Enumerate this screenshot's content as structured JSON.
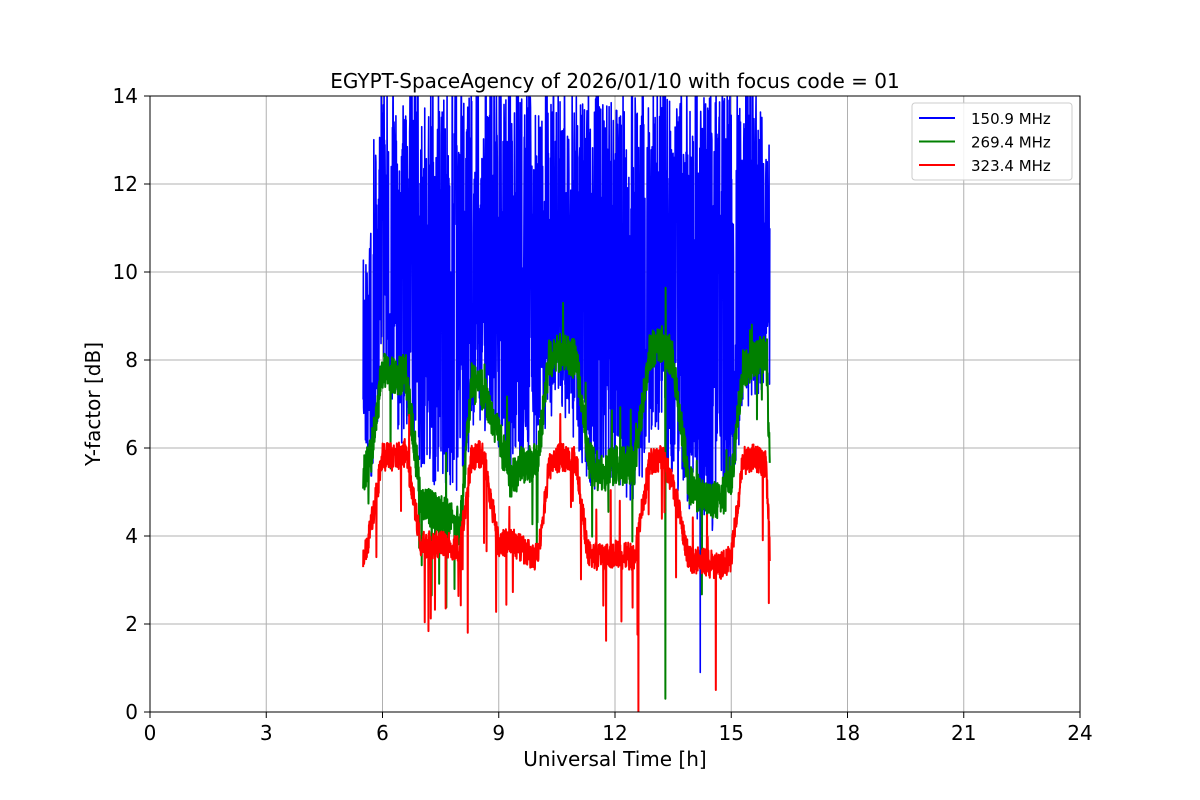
{
  "chart_data": {
    "type": "line",
    "title": "EGYPT-SpaceAgency of 2026/01/10 with focus code = 01",
    "xlabel": "Universal Time [h]",
    "ylabel": "Y-factor [dB]",
    "xlim": [
      0,
      24
    ],
    "ylim": [
      0,
      14
    ],
    "xticks": [
      0,
      3,
      6,
      9,
      12,
      15,
      18,
      21,
      24
    ],
    "yticks": [
      0,
      2,
      4,
      6,
      8,
      10,
      12,
      14
    ],
    "grid": true,
    "legend_position": "top-right",
    "series": [
      {
        "name": "150.9 MHz",
        "color": "#0000ff",
        "approx_profile_x": [
          5.5,
          5.7,
          6.0,
          6.5,
          7.0,
          7.5,
          8.0,
          8.5,
          9.0,
          9.5,
          10.0,
          10.5,
          11.0,
          11.5,
          12.0,
          12.5,
          13.0,
          13.5,
          14.0,
          14.5,
          15.0,
          15.5,
          16.0
        ],
        "approx_lower_envelope": [
          6.5,
          5.0,
          7.5,
          6.0,
          5.5,
          5.0,
          5.0,
          6.5,
          6.0,
          5.0,
          6.0,
          7.0,
          6.0,
          4.8,
          5.0,
          4.5,
          6.5,
          5.0,
          4.5,
          4.0,
          5.0,
          7.0,
          7.2
        ],
        "approx_upper_envelope": [
          9.7,
          12.0,
          14.0,
          14.0,
          14.0,
          14.0,
          14.0,
          14.0,
          14.0,
          14.0,
          14.0,
          14.0,
          14.0,
          14.0,
          14.0,
          14.0,
          14.0,
          14.0,
          14.0,
          14.0,
          14.0,
          14.0,
          12.3
        ]
      },
      {
        "name": "269.4 MHz",
        "color": "#008000",
        "approx_profile_x": [
          5.5,
          5.7,
          6.0,
          6.3,
          6.6,
          7.0,
          7.5,
          8.0,
          8.3,
          8.6,
          9.0,
          9.3,
          9.6,
          10.0,
          10.3,
          10.6,
          11.0,
          11.3,
          11.6,
          12.0,
          12.5,
          12.9,
          13.2,
          13.5,
          13.9,
          14.3,
          14.7,
          15.0,
          15.3,
          15.6,
          15.9,
          16.0
        ],
        "approx_values": [
          5.4,
          5.8,
          7.8,
          7.6,
          7.7,
          4.8,
          4.5,
          4.2,
          7.5,
          7.3,
          6.3,
          5.3,
          5.6,
          5.7,
          8.0,
          8.2,
          8.0,
          5.8,
          5.4,
          5.6,
          5.6,
          8.2,
          8.4,
          8.0,
          5.2,
          4.8,
          4.8,
          5.2,
          7.8,
          8.0,
          8.2,
          5.5
        ]
      },
      {
        "name": "323.4 MHz",
        "color": "#ff0000",
        "approx_profile_x": [
          5.5,
          5.7,
          6.0,
          6.3,
          6.6,
          7.0,
          7.5,
          8.0,
          8.3,
          8.6,
          9.0,
          9.3,
          9.6,
          10.0,
          10.3,
          10.6,
          11.0,
          11.3,
          11.6,
          12.0,
          12.5,
          12.9,
          13.2,
          13.5,
          13.9,
          14.3,
          14.7,
          15.0,
          15.3,
          15.6,
          15.9,
          16.0
        ],
        "approx_values": [
          3.4,
          4.2,
          5.8,
          5.8,
          5.9,
          3.8,
          3.8,
          3.7,
          5.8,
          5.9,
          3.8,
          3.9,
          3.7,
          3.5,
          5.6,
          5.8,
          5.7,
          3.6,
          3.5,
          3.6,
          3.5,
          5.7,
          5.8,
          5.2,
          3.5,
          3.4,
          3.3,
          3.5,
          5.7,
          5.8,
          5.6,
          3.6
        ]
      }
    ],
    "notable_spikes": [
      {
        "series": "150.9 MHz",
        "x": 14.2,
        "y": 0.9
      },
      {
        "series": "269.4 MHz",
        "x": 13.3,
        "y": 0.3
      },
      {
        "series": "323.4 MHz",
        "x": 12.6,
        "y": 0.0
      },
      {
        "series": "323.4 MHz",
        "x": 14.6,
        "y": 0.5
      },
      {
        "series": "323.4 MHz",
        "x": 8.2,
        "y": 1.8
      }
    ]
  }
}
